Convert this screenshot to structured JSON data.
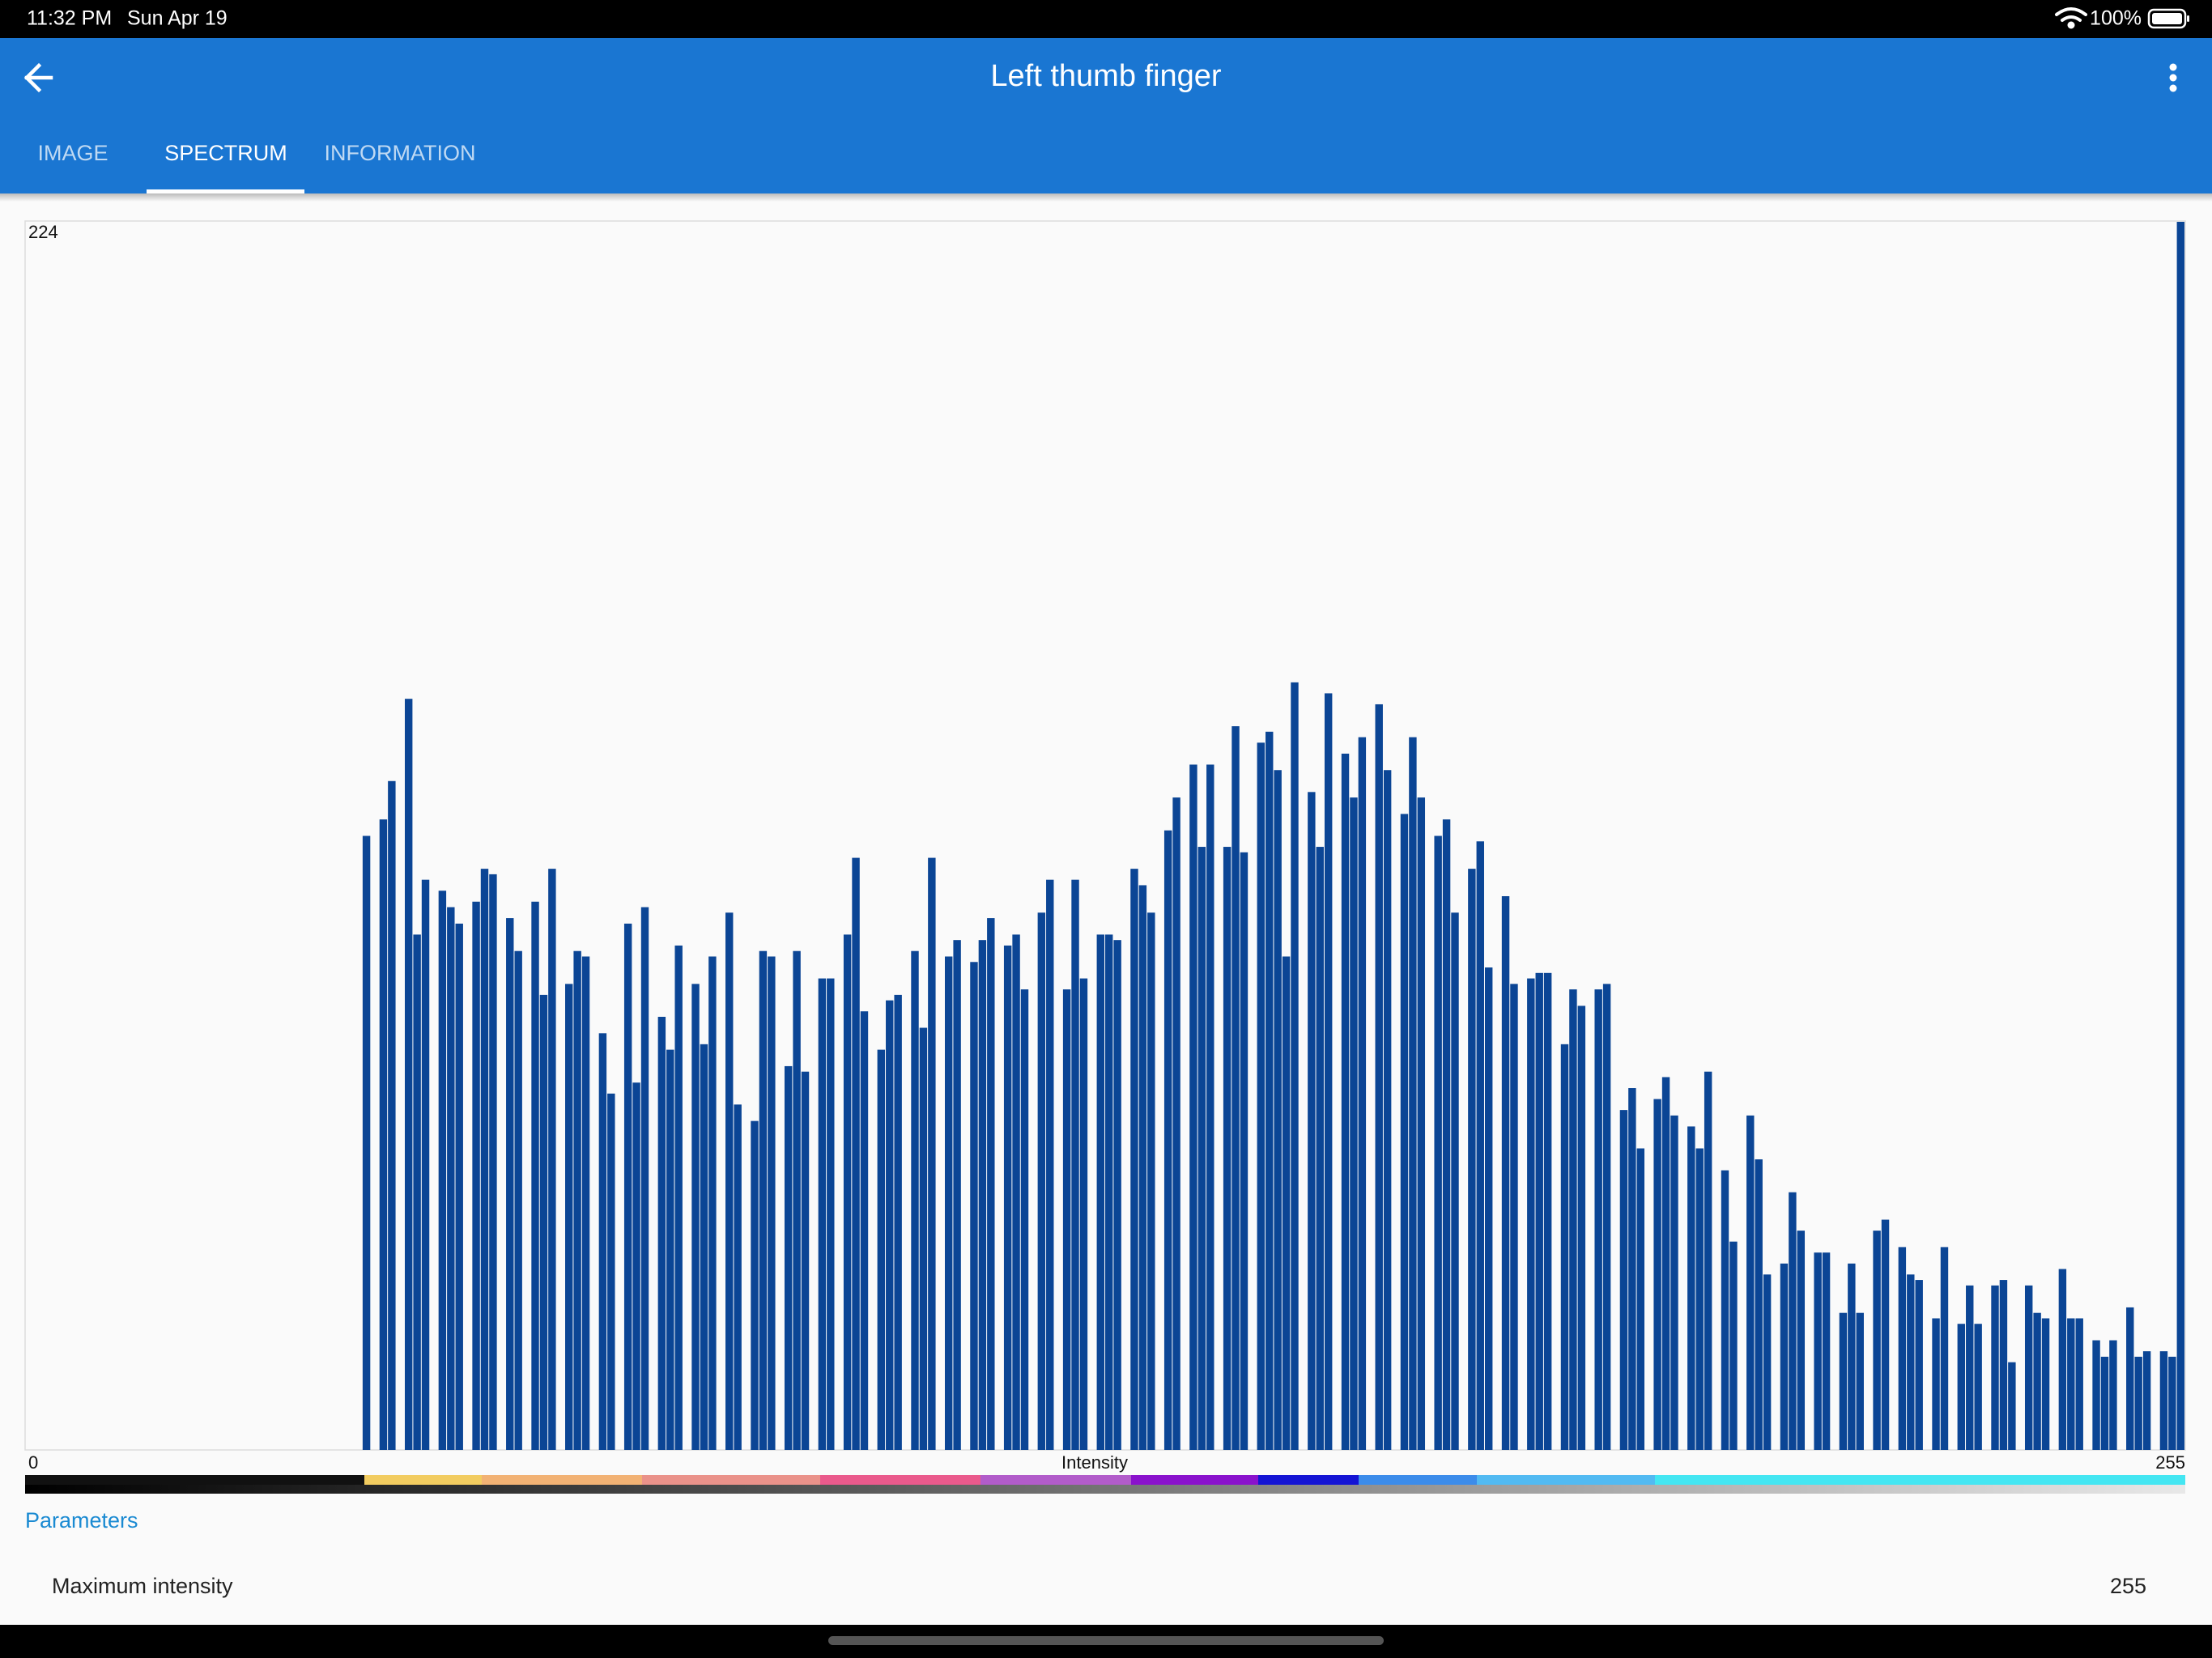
{
  "status_bar": {
    "time": "11:32 PM",
    "date": "Sun Apr 19",
    "battery": "100%"
  },
  "app_bar": {
    "title": "Left thumb finger",
    "tabs": [
      "IMAGE",
      "SPECTRUM",
      "INFORMATION"
    ]
  },
  "chart_data": {
    "type": "bar",
    "x_label": "Intensity",
    "x": [
      0,
      1,
      2,
      3,
      4,
      5,
      6,
      7,
      8,
      9,
      10,
      11,
      12,
      13,
      14,
      15,
      16,
      17,
      18,
      19,
      20,
      21,
      22,
      23,
      24,
      25,
      26,
      27,
      28,
      29,
      30,
      31,
      32,
      33,
      34,
      35,
      36,
      37,
      38,
      39,
      40,
      41,
      42,
      43,
      44,
      45,
      46,
      47,
      48,
      49,
      50,
      51,
      52,
      53,
      54,
      55,
      56,
      57,
      58,
      59,
      60,
      61,
      62,
      63,
      64,
      65,
      66,
      67,
      68,
      69,
      70,
      71,
      72,
      73,
      74,
      75,
      76,
      77,
      78,
      79,
      80,
      81,
      82,
      83,
      84,
      85,
      86,
      87,
      88,
      89,
      90,
      91,
      92,
      93,
      94,
      95,
      96,
      97,
      98,
      99,
      100,
      101,
      102,
      103,
      104,
      105,
      106,
      107,
      108,
      109,
      110,
      111,
      112,
      113,
      114,
      115,
      116,
      117,
      118,
      119,
      120,
      121,
      122,
      123,
      124,
      125,
      126,
      127,
      128,
      129,
      130,
      131,
      132,
      133,
      134,
      135,
      136,
      137,
      138,
      139,
      140,
      141,
      142,
      143,
      144,
      145,
      146,
      147,
      148,
      149,
      150,
      151,
      152,
      153,
      154,
      155,
      156,
      157,
      158,
      159,
      160,
      161,
      162,
      163,
      164,
      165,
      166,
      167,
      168,
      169,
      170,
      171,
      172,
      173,
      174,
      175,
      176,
      177,
      178,
      179,
      180,
      181,
      182,
      183,
      184,
      185,
      186,
      187,
      188,
      189,
      190,
      191,
      192,
      193,
      194,
      195,
      196,
      197,
      198,
      199,
      200,
      201,
      202,
      203,
      204,
      205,
      206,
      207,
      208,
      209,
      210,
      211,
      212,
      213,
      214,
      215,
      216,
      217,
      218,
      219,
      220,
      221,
      222,
      223,
      224,
      225,
      226,
      227,
      228,
      229,
      230,
      231,
      232,
      233,
      234,
      235,
      236,
      237,
      238,
      239,
      240,
      241,
      242,
      243,
      244,
      245,
      246,
      247,
      248,
      249,
      250,
      251,
      252,
      253,
      254,
      255
    ],
    "values": [
      0,
      0,
      0,
      0,
      0,
      0,
      0,
      0,
      0,
      0,
      0,
      0,
      0,
      0,
      0,
      0,
      0,
      0,
      0,
      0,
      0,
      0,
      0,
      0,
      0,
      0,
      0,
      0,
      0,
      0,
      0,
      0,
      0,
      0,
      0,
      0,
      0,
      0,
      0,
      0,
      112,
      0,
      115,
      122,
      0,
      137,
      94,
      104,
      0,
      102,
      99,
      96,
      0,
      100,
      106,
      105,
      0,
      97,
      91,
      0,
      100,
      83,
      106,
      0,
      85,
      91,
      90,
      0,
      76,
      65,
      0,
      96,
      67,
      99,
      0,
      79,
      73,
      92,
      0,
      85,
      74,
      90,
      0,
      98,
      63,
      0,
      60,
      91,
      90,
      0,
      70,
      91,
      69,
      0,
      86,
      86,
      0,
      94,
      108,
      80,
      0,
      73,
      82,
      83,
      0,
      91,
      77,
      108,
      0,
      90,
      93,
      0,
      89,
      93,
      97,
      0,
      92,
      94,
      84,
      0,
      98,
      104,
      0,
      84,
      104,
      86,
      0,
      94,
      94,
      93,
      0,
      106,
      103,
      98,
      0,
      113,
      119,
      0,
      125,
      110,
      125,
      0,
      110,
      132,
      109,
      0,
      129,
      131,
      124,
      90,
      140,
      0,
      120,
      110,
      138,
      0,
      127,
      119,
      130,
      0,
      136,
      124,
      0,
      116,
      130,
      119,
      0,
      112,
      115,
      98,
      0,
      106,
      111,
      88,
      0,
      101,
      85,
      0,
      86,
      87,
      87,
      0,
      74,
      84,
      81,
      0,
      84,
      85,
      0,
      62,
      66,
      55,
      0,
      64,
      68,
      61,
      0,
      59,
      55,
      69,
      0,
      51,
      38,
      0,
      61,
      53,
      32,
      0,
      34,
      47,
      40,
      0,
      36,
      36,
      0,
      25,
      34,
      25,
      0,
      40,
      42,
      0,
      37,
      32,
      31,
      0,
      24,
      37,
      0,
      23,
      30,
      23,
      0,
      30,
      31,
      16,
      0,
      30,
      25,
      24,
      0,
      33,
      24,
      24,
      0,
      20,
      17,
      20,
      0,
      26,
      17,
      18,
      0,
      18,
      17,
      224
    ],
    "color": "#0b4595",
    "xlim": [
      0,
      255
    ],
    "xticks": [
      0,
      255
    ],
    "ylim": [
      0,
      224
    ],
    "yticks": [
      224
    ]
  },
  "parameters": {
    "title": "Parameters",
    "rows": [
      [
        "Maximum intensity",
        "255"
      ]
    ]
  }
}
